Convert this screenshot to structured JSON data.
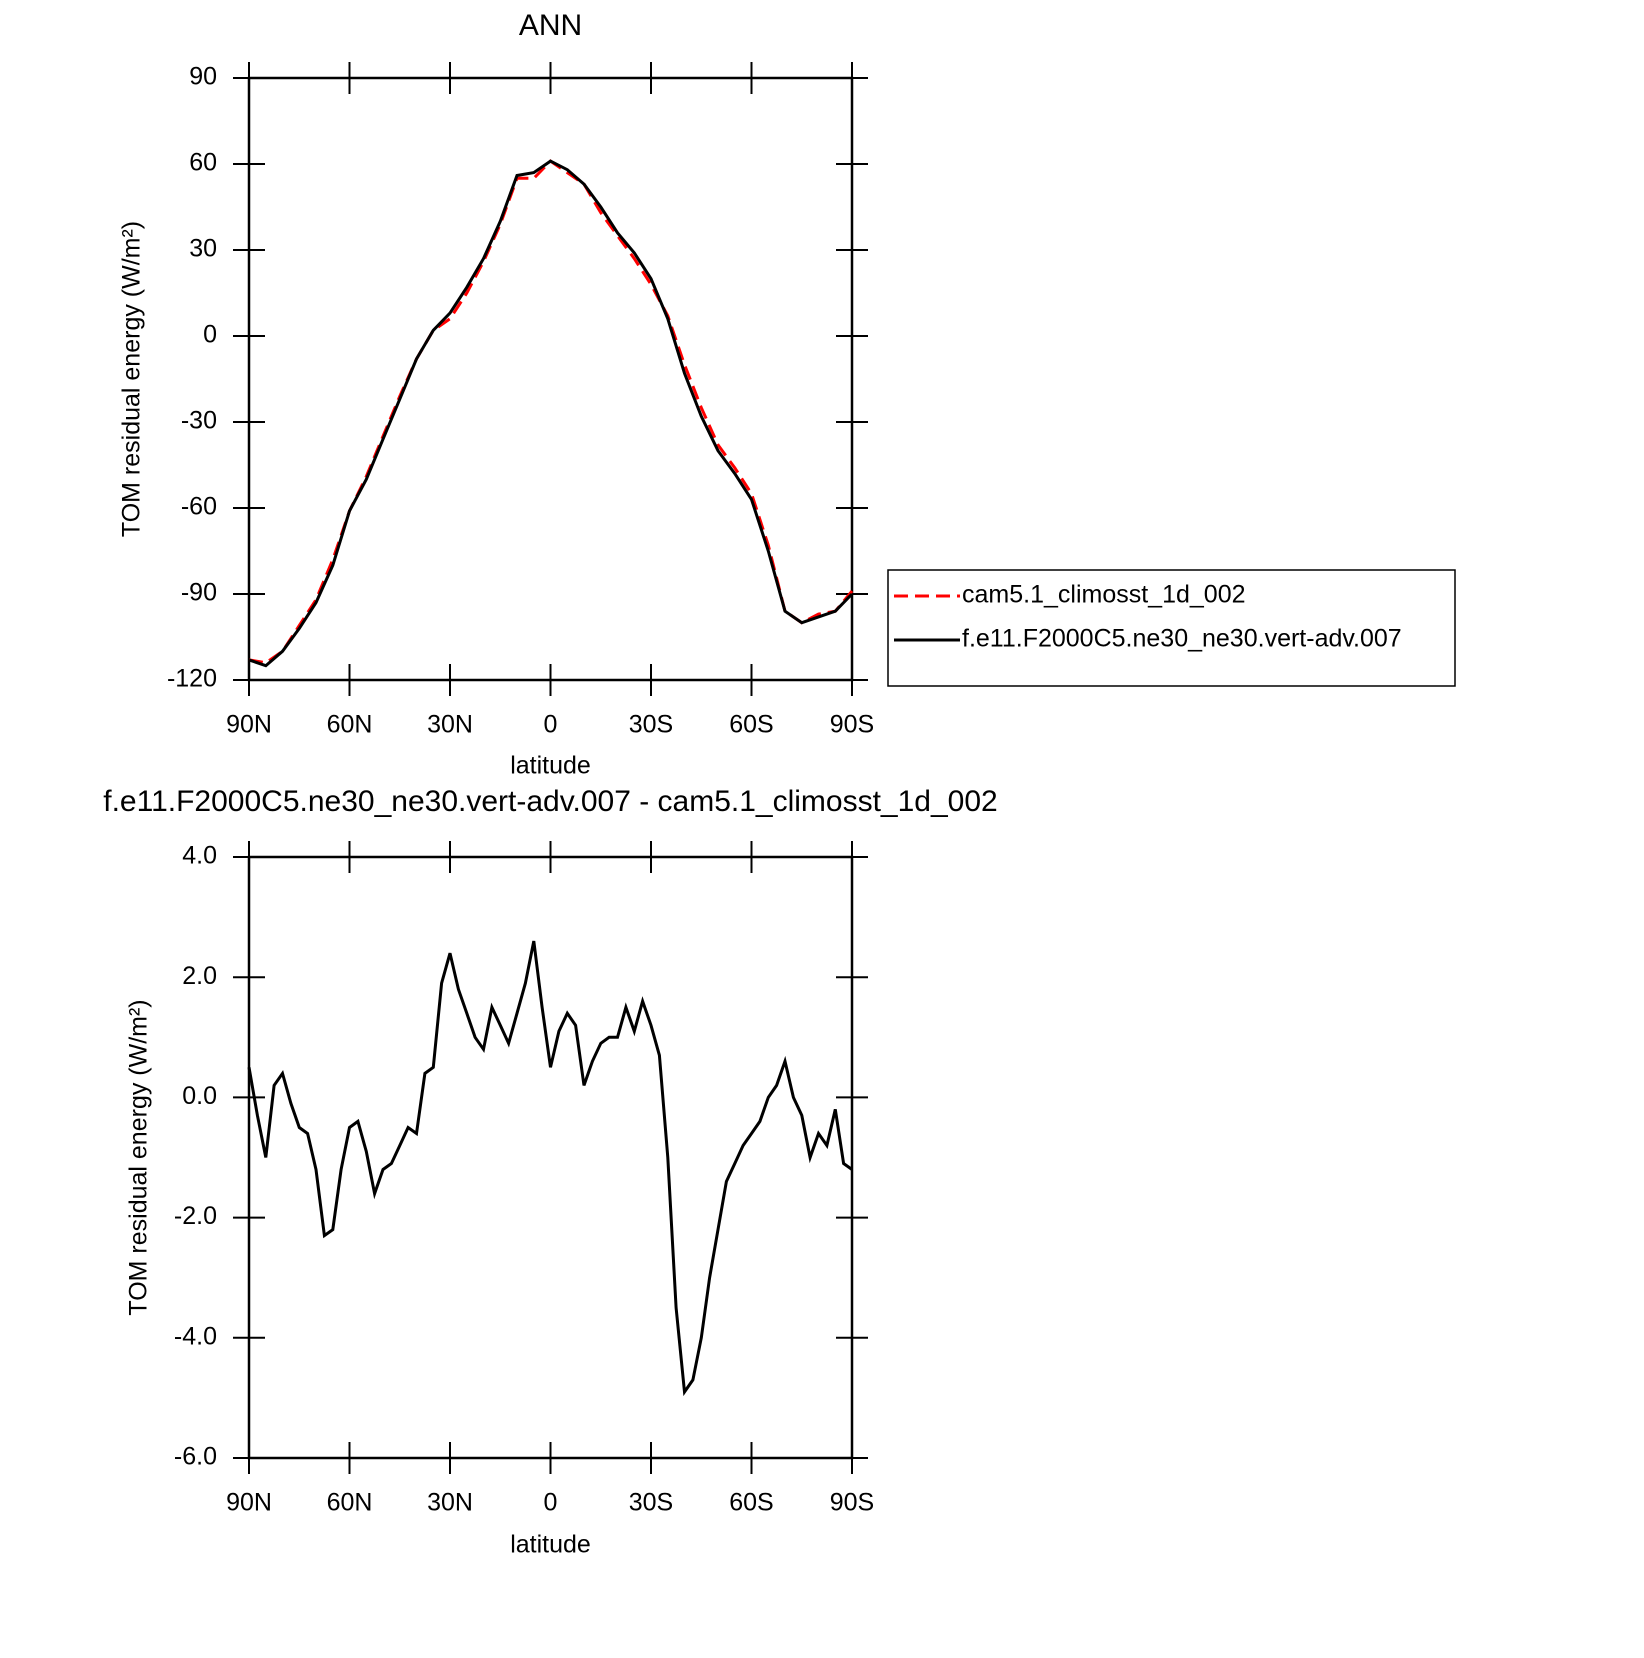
{
  "chart_data": [
    {
      "type": "line",
      "title": "ANN",
      "xlabel": "latitude",
      "ylabel": "TOM residual energy (W/m²)",
      "x": [
        90,
        85,
        80,
        75,
        70,
        65,
        60,
        55,
        50,
        45,
        40,
        35,
        30,
        25,
        20,
        15,
        10,
        5,
        0,
        -5,
        -10,
        -15,
        -20,
        -25,
        -30,
        -35,
        -40,
        -45,
        -50,
        -55,
        -60,
        -65,
        -70,
        -75,
        -80,
        -85,
        -90
      ],
      "series": [
        {
          "name": "cam5.1_climosst_1d_002",
          "color": "#ff0000",
          "dashed": true,
          "values": [
            -113,
            -114,
            -110,
            -101,
            -92,
            -78,
            -61,
            -49,
            -35,
            -21,
            -8,
            2,
            6,
            15,
            26,
            39,
            55,
            55,
            61,
            57,
            53,
            43,
            35,
            27,
            18,
            7,
            -10,
            -25,
            -38,
            -46,
            -55,
            -73,
            -96,
            -100,
            -97,
            -96,
            -89
          ]
        },
        {
          "name": "f.e11.F2000C5.ne30_ne30.vert-adv.007",
          "color": "#000000",
          "dashed": false,
          "values": [
            -113,
            -115,
            -110,
            -102,
            -93,
            -80,
            -61,
            -50,
            -36,
            -22,
            -8,
            2,
            8,
            17,
            27,
            40,
            56,
            57,
            61,
            58,
            53,
            45,
            36,
            29,
            20,
            6,
            -13,
            -28,
            -40,
            -48,
            -57,
            -75,
            -96,
            -100,
            -98,
            -96,
            -90
          ]
        }
      ],
      "xlim": [
        90,
        -90
      ],
      "xticks": [
        {
          "value": 90,
          "label": "90N"
        },
        {
          "value": 60,
          "label": "60N"
        },
        {
          "value": 30,
          "label": "30N"
        },
        0,
        {
          "value": -30,
          "label": "30S"
        },
        {
          "value": -60,
          "label": "60S"
        },
        {
          "value": -90,
          "label": "90S"
        }
      ],
      "ylim": [
        -120,
        90
      ],
      "yticks": [
        -120,
        -90,
        -60,
        -30,
        0,
        30,
        60,
        90
      ],
      "legend": "right"
    },
    {
      "type": "line",
      "title": "f.e11.F2000C5.ne30_ne30.vert-adv.007 - cam5.1_climosst_1d_002",
      "xlabel": "latitude",
      "ylabel": "TOM residual energy (W/m²)",
      "x": [
        90,
        87.5,
        85,
        82.5,
        80,
        77.5,
        75,
        72.5,
        70,
        67.5,
        65,
        62.5,
        60,
        57.5,
        55,
        52.5,
        50,
        47.5,
        45,
        42.5,
        40,
        37.5,
        35,
        32.5,
        30,
        27.5,
        25,
        22.5,
        20,
        17.5,
        15,
        12.5,
        10,
        7.5,
        5,
        2.5,
        0,
        -2.5,
        -5,
        -7.5,
        -10,
        -12.5,
        -15,
        -17.5,
        -20,
        -22.5,
        -25,
        -27.5,
        -30,
        -32.5,
        -35,
        -37.5,
        -40,
        -42.5,
        -45,
        -47.5,
        -50,
        -52.5,
        -55,
        -57.5,
        -60,
        -62.5,
        -65,
        -67.5,
        -70,
        -72.5,
        -75,
        -77.5,
        -80,
        -82.5,
        -85,
        -87.5,
        -90
      ],
      "series": [
        {
          "name": "f.e11.F2000C5.ne30_ne30.vert-adv.007 - cam5.1_climosst_1d_002",
          "color": "#000000",
          "dashed": false,
          "values": [
            0.5,
            -0.3,
            -1.0,
            0.2,
            0.4,
            -0.1,
            -0.5,
            -0.6,
            -1.2,
            -2.3,
            -2.2,
            -1.2,
            -0.5,
            -0.4,
            -0.9,
            -1.6,
            -1.2,
            -1.1,
            -0.8,
            -0.5,
            -0.6,
            0.4,
            0.5,
            1.9,
            2.4,
            1.8,
            1.4,
            1.0,
            0.8,
            1.5,
            1.2,
            0.9,
            1.4,
            1.9,
            2.6,
            1.5,
            0.5,
            1.1,
            1.4,
            1.2,
            0.2,
            0.6,
            0.9,
            1.0,
            1.0,
            1.5,
            1.1,
            1.6,
            1.2,
            0.7,
            -1.0,
            -3.5,
            -4.9,
            -4.7,
            -4.0,
            -3.0,
            -2.2,
            -1.4,
            -1.1,
            -0.8,
            -0.6,
            -0.4,
            0.0,
            0.2,
            0.6,
            0.0,
            -0.3,
            -1.0,
            -0.6,
            -0.8,
            -0.2,
            -1.1,
            -1.2
          ]
        }
      ],
      "xlim": [
        90,
        -90
      ],
      "xticks": [
        {
          "value": 90,
          "label": "90N"
        },
        {
          "value": 60,
          "label": "60N"
        },
        {
          "value": 30,
          "label": "30N"
        },
        0,
        {
          "value": -30,
          "label": "30S"
        },
        {
          "value": -60,
          "label": "60S"
        },
        {
          "value": -90,
          "label": "90S"
        }
      ],
      "ylim": [
        -6,
        4
      ],
      "yticks": [
        {
          "value": -6,
          "label": "-6.0"
        },
        {
          "value": -4,
          "label": "-4.0"
        },
        {
          "value": -2,
          "label": "-2.0"
        },
        {
          "value": 0,
          "label": "0.0"
        },
        {
          "value": 2,
          "label": "2.0"
        },
        {
          "value": 4,
          "label": "4.0"
        }
      ]
    }
  ]
}
